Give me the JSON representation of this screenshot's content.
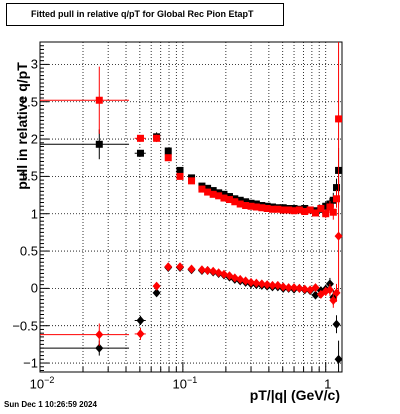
{
  "chart_data": {
    "type": "scatter",
    "title": "Fitted pull in relative q/pT for Global Rec Pion EtapT",
    "xlabel": "pT/|q| (GeV/c)",
    "ylabel": "pull in relative q/pT",
    "xscale": "log",
    "xlim": [
      0.01,
      1.3
    ],
    "ylim": [
      -1.12,
      3.3
    ],
    "grid": true,
    "x_ticks": [
      {
        "label": "10",
        "sup": "−2",
        "value": 0.01
      },
      {
        "label": "10",
        "sup": "−1",
        "value": 0.1
      },
      {
        "label": "1",
        "sup": "",
        "value": 1
      }
    ],
    "y_ticks": [
      {
        "label": "−1",
        "value": -1
      },
      {
        "label": "−0.5",
        "value": -0.5
      },
      {
        "label": "0",
        "value": 0
      },
      {
        "label": "0.5",
        "value": 0.5
      },
      {
        "label": "1",
        "value": 1
      },
      {
        "label": "1.5",
        "value": 1.5
      },
      {
        "label": "2",
        "value": 2
      },
      {
        "label": "2.5",
        "value": 2.5
      },
      {
        "label": "3",
        "value": 3
      }
    ],
    "series": [
      {
        "color": "#000000",
        "marker": "square",
        "points": [
          [
            0.026,
            1.93,
            0.016,
            0.2
          ],
          [
            0.0505,
            1.81,
            0.0045,
            0.03
          ],
          [
            0.0655,
            2.03,
            0.003,
            0.06
          ],
          [
            0.079,
            1.84,
            0.003,
            0.03
          ],
          [
            0.0955,
            1.58,
            0.004,
            0.02
          ],
          [
            0.115,
            1.48,
            0.005,
            0.02
          ],
          [
            0.136,
            1.37,
            0.005,
            0.01
          ],
          [
            0.149,
            1.34,
            0.005,
            0.01
          ],
          [
            0.163,
            1.31,
            0.005,
            0.01
          ],
          [
            0.178,
            1.28,
            0.005,
            0.01
          ],
          [
            0.194,
            1.26,
            0.006,
            0.01
          ],
          [
            0.212,
            1.23,
            0.006,
            0.01
          ],
          [
            0.231,
            1.2,
            0.007,
            0.01
          ],
          [
            0.252,
            1.18,
            0.007,
            0.01
          ],
          [
            0.275,
            1.16,
            0.008,
            0.01
          ],
          [
            0.3,
            1.14,
            0.008,
            0.01
          ],
          [
            0.327,
            1.13,
            0.009,
            0.01
          ],
          [
            0.357,
            1.11,
            0.01,
            0.01
          ],
          [
            0.389,
            1.1,
            0.011,
            0.01
          ],
          [
            0.424,
            1.09,
            0.012,
            0.01
          ],
          [
            0.462,
            1.08,
            0.013,
            0.01
          ],
          [
            0.504,
            1.08,
            0.014,
            0.015
          ],
          [
            0.55,
            1.07,
            0.015,
            0.015
          ],
          [
            0.6,
            1.07,
            0.016,
            0.02
          ],
          [
            0.654,
            1.06,
            0.018,
            0.02
          ],
          [
            0.713,
            1.07,
            0.02,
            0.03
          ],
          [
            0.778,
            1.05,
            0.02,
            0.03
          ],
          [
            0.848,
            1.04,
            0.023,
            0.04
          ],
          [
            0.925,
            1.06,
            0.025,
            0.05
          ],
          [
            1.0,
            1.1,
            0.027,
            0.06
          ],
          [
            1.07,
            1.13,
            0.03,
            0.08
          ],
          [
            1.13,
            1.18,
            0.03,
            0.1
          ],
          [
            1.19,
            1.35,
            0.03,
            0.12
          ],
          [
            1.23,
            1.58,
            0.03,
            0.3
          ]
        ]
      },
      {
        "color": "#ff0000",
        "marker": "square",
        "points": [
          [
            0.026,
            2.52,
            0.016,
            0.45
          ],
          [
            0.0505,
            2.01,
            0.0045,
            0.03
          ],
          [
            0.0655,
            2.01,
            0.003,
            0.05
          ],
          [
            0.079,
            1.75,
            0.003,
            0.03
          ],
          [
            0.0955,
            1.5,
            0.004,
            0.02
          ],
          [
            0.115,
            1.44,
            0.005,
            0.02
          ],
          [
            0.136,
            1.33,
            0.005,
            0.01
          ],
          [
            0.149,
            1.29,
            0.005,
            0.01
          ],
          [
            0.163,
            1.26,
            0.005,
            0.01
          ],
          [
            0.178,
            1.24,
            0.005,
            0.01
          ],
          [
            0.194,
            1.21,
            0.006,
            0.01
          ],
          [
            0.212,
            1.19,
            0.006,
            0.01
          ],
          [
            0.231,
            1.16,
            0.007,
            0.01
          ],
          [
            0.252,
            1.13,
            0.007,
            0.01
          ],
          [
            0.275,
            1.11,
            0.008,
            0.01
          ],
          [
            0.3,
            1.1,
            0.008,
            0.01
          ],
          [
            0.327,
            1.09,
            0.009,
            0.01
          ],
          [
            0.357,
            1.08,
            0.01,
            0.01
          ],
          [
            0.389,
            1.07,
            0.011,
            0.01
          ],
          [
            0.424,
            1.06,
            0.012,
            0.01
          ],
          [
            0.462,
            1.06,
            0.013,
            0.01
          ],
          [
            0.504,
            1.05,
            0.014,
            0.015
          ],
          [
            0.55,
            1.05,
            0.015,
            0.015
          ],
          [
            0.6,
            1.04,
            0.016,
            0.02
          ],
          [
            0.654,
            1.05,
            0.018,
            0.02
          ],
          [
            0.713,
            1.03,
            0.02,
            0.03
          ],
          [
            0.778,
            1.05,
            0.02,
            0.03
          ],
          [
            0.848,
            1.01,
            0.023,
            0.04
          ],
          [
            0.925,
            1.07,
            0.025,
            0.05
          ],
          [
            1.0,
            1.0,
            0.027,
            0.06
          ],
          [
            1.07,
            1.09,
            0.03,
            0.08
          ],
          [
            1.13,
            1.02,
            0.03,
            0.1
          ],
          [
            1.19,
            1.2,
            0.03,
            0.12
          ],
          [
            1.23,
            2.27,
            0.03,
            1.15
          ]
        ]
      },
      {
        "color": "#000000",
        "marker": "diamond",
        "points": [
          [
            0.026,
            -0.8,
            0.016,
            0.1
          ],
          [
            0.0505,
            -0.43,
            0.0045,
            0.06
          ],
          [
            0.0655,
            -0.06,
            0.003,
            0.04
          ],
          [
            0.079,
            0.28,
            0.003,
            0.03
          ],
          [
            0.0955,
            0.28,
            0.004,
            0.02
          ],
          [
            0.115,
            0.25,
            0.005,
            0.02
          ],
          [
            0.136,
            0.24,
            0.005,
            0.01
          ],
          [
            0.149,
            0.24,
            0.005,
            0.01
          ],
          [
            0.163,
            0.22,
            0.005,
            0.01
          ],
          [
            0.178,
            0.2,
            0.005,
            0.01
          ],
          [
            0.194,
            0.18,
            0.006,
            0.01
          ],
          [
            0.212,
            0.15,
            0.006,
            0.01
          ],
          [
            0.231,
            0.12,
            0.007,
            0.01
          ],
          [
            0.252,
            0.1,
            0.007,
            0.01
          ],
          [
            0.275,
            0.08,
            0.008,
            0.01
          ],
          [
            0.3,
            0.06,
            0.008,
            0.01
          ],
          [
            0.327,
            0.05,
            0.009,
            0.01
          ],
          [
            0.357,
            0.04,
            0.01,
            0.01
          ],
          [
            0.389,
            0.03,
            0.011,
            0.01
          ],
          [
            0.424,
            0.02,
            0.012,
            0.01
          ],
          [
            0.462,
            0.02,
            0.013,
            0.01
          ],
          [
            0.504,
            0.0,
            0.014,
            0.015
          ],
          [
            0.55,
            0.0,
            0.015,
            0.015
          ],
          [
            0.6,
            -0.01,
            0.016,
            0.02
          ],
          [
            0.654,
            0.0,
            0.018,
            0.02
          ],
          [
            0.713,
            -0.02,
            0.02,
            0.03
          ],
          [
            0.778,
            -0.03,
            0.02,
            0.03
          ],
          [
            0.848,
            -0.09,
            0.023,
            0.04
          ],
          [
            0.925,
            -0.03,
            0.025,
            0.05
          ],
          [
            1.0,
            -0.01,
            0.027,
            0.06
          ],
          [
            1.07,
            0.06,
            0.03,
            0.08
          ],
          [
            1.13,
            -0.12,
            0.03,
            0.1
          ],
          [
            1.19,
            -0.48,
            0.03,
            0.12
          ],
          [
            1.23,
            -0.95,
            0.03,
            0.25
          ]
        ]
      },
      {
        "color": "#ff0000",
        "marker": "diamond",
        "points": [
          [
            0.026,
            -0.62,
            0.016,
            0.15
          ],
          [
            0.0505,
            -0.61,
            0.0045,
            0.08
          ],
          [
            0.0655,
            0.03,
            0.003,
            0.04
          ],
          [
            0.079,
            0.29,
            0.003,
            0.03
          ],
          [
            0.0955,
            0.29,
            0.004,
            0.02
          ],
          [
            0.115,
            0.26,
            0.005,
            0.02
          ],
          [
            0.136,
            0.25,
            0.005,
            0.01
          ],
          [
            0.149,
            0.24,
            0.005,
            0.01
          ],
          [
            0.163,
            0.23,
            0.005,
            0.01
          ],
          [
            0.178,
            0.21,
            0.005,
            0.01
          ],
          [
            0.194,
            0.19,
            0.006,
            0.01
          ],
          [
            0.212,
            0.17,
            0.006,
            0.01
          ],
          [
            0.231,
            0.14,
            0.007,
            0.01
          ],
          [
            0.252,
            0.12,
            0.007,
            0.01
          ],
          [
            0.275,
            0.1,
            0.008,
            0.01
          ],
          [
            0.3,
            0.08,
            0.008,
            0.01
          ],
          [
            0.327,
            0.07,
            0.009,
            0.01
          ],
          [
            0.357,
            0.06,
            0.01,
            0.01
          ],
          [
            0.389,
            0.05,
            0.011,
            0.01
          ],
          [
            0.424,
            0.04,
            0.012,
            0.01
          ],
          [
            0.462,
            0.04,
            0.013,
            0.01
          ],
          [
            0.504,
            0.02,
            0.014,
            0.015
          ],
          [
            0.55,
            0.01,
            0.015,
            0.015
          ],
          [
            0.6,
            0.01,
            0.016,
            0.02
          ],
          [
            0.654,
            0.0,
            0.018,
            0.02
          ],
          [
            0.713,
            -0.01,
            0.02,
            0.03
          ],
          [
            0.778,
            -0.02,
            0.02,
            0.03
          ],
          [
            0.848,
            0.01,
            0.023,
            0.04
          ],
          [
            0.925,
            -0.08,
            0.025,
            0.05
          ],
          [
            1.0,
            -0.04,
            0.027,
            0.06
          ],
          [
            1.07,
            -0.02,
            0.03,
            0.08
          ],
          [
            1.13,
            -0.16,
            0.03,
            0.1
          ],
          [
            1.19,
            -0.06,
            0.03,
            0.12
          ],
          [
            1.23,
            0.7,
            0.03,
            0.75
          ]
        ]
      }
    ]
  },
  "footer": {
    "datestamp": "Sun Dec  1 10:26:59 2024"
  }
}
